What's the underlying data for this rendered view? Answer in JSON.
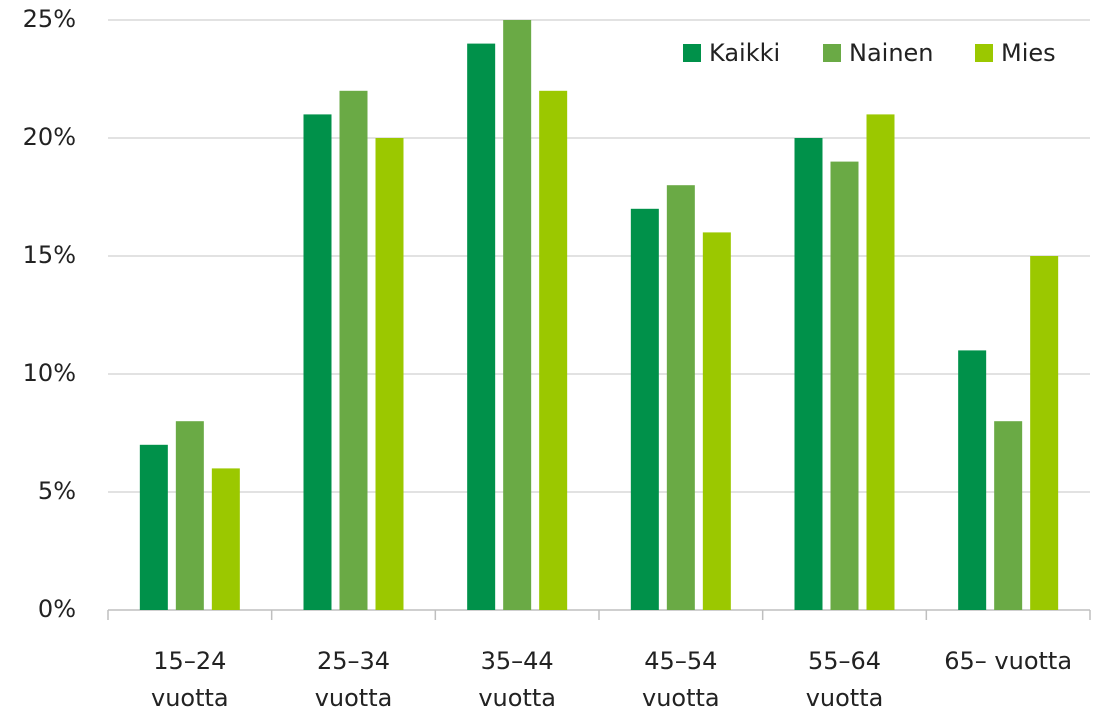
{
  "chart_data": {
    "type": "bar",
    "categories": [
      "15–24 vuotta",
      "25–34 vuotta",
      "35–44 vuotta",
      "45–54 vuotta",
      "55–64 vuotta",
      "65– vuotta"
    ],
    "series": [
      {
        "name": "Kaikki",
        "color": "#00914a",
        "values": [
          7,
          21,
          24,
          17,
          20,
          11
        ]
      },
      {
        "name": "Nainen",
        "color": "#6aaa45",
        "values": [
          8,
          22,
          25,
          18,
          19,
          8
        ]
      },
      {
        "name": "Mies",
        "color": "#9bc800",
        "values": [
          6,
          20,
          22,
          16,
          21,
          15
        ]
      }
    ],
    "ylim": [
      0,
      25
    ],
    "yticks": [
      {
        "value": 0,
        "label": "0%"
      },
      {
        "value": 5,
        "label": "5%"
      },
      {
        "value": 10,
        "label": "10%"
      },
      {
        "value": 15,
        "label": "15%"
      },
      {
        "value": 20,
        "label": "20%"
      },
      {
        "value": 25,
        "label": "25%"
      }
    ],
    "grid": true,
    "legend": "top-right"
  }
}
